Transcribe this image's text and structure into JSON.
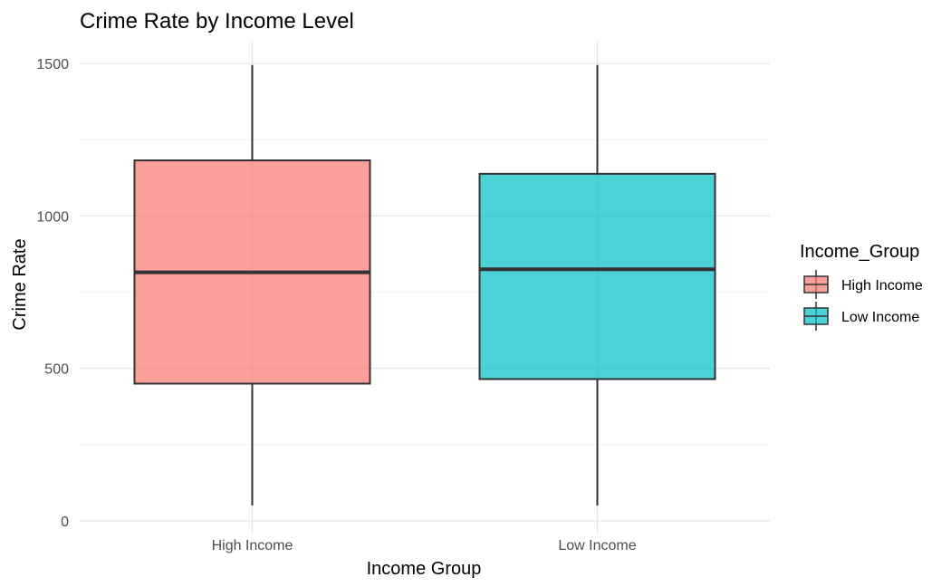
{
  "chart_data": {
    "type": "boxplot",
    "title": "Crime Rate by Income Level",
    "xlabel": "Income Group",
    "ylabel": "Crime Rate",
    "ylim": [
      0,
      1550
    ],
    "yticks": [
      0,
      500,
      1000,
      1500
    ],
    "categories": [
      "High Income",
      "Low Income"
    ],
    "series": [
      {
        "name": "High Income",
        "color": "#F8766D",
        "min": 50,
        "q1": 450,
        "median": 815,
        "q3": 1182,
        "max": 1495
      },
      {
        "name": "Low Income",
        "color": "#00BFC4",
        "min": 50,
        "q1": 465,
        "median": 825,
        "q3": 1138,
        "max": 1495
      }
    ],
    "legend": {
      "title": "Income_Group",
      "position": "right"
    },
    "grid": true
  }
}
